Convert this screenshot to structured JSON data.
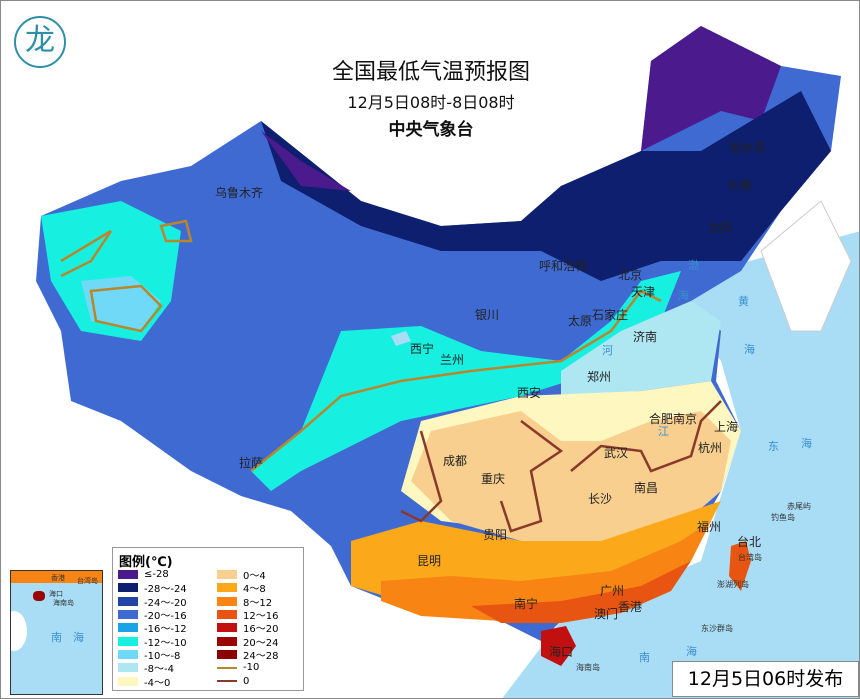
{
  "header": {
    "title": "全国最低气温预报图",
    "period": "12月5日08时-8日08时",
    "issuer": "中央气象台"
  },
  "footer": {
    "published": "12月5日06时发布"
  },
  "legend": {
    "title": "图例(℃)",
    "items": [
      {
        "label": "≤-28",
        "color": "#4b1a8c"
      },
      {
        "label": "-28～-24",
        "color": "#0d1f6e"
      },
      {
        "label": "-24～-20",
        "color": "#1f45a8"
      },
      {
        "label": "-20～-16",
        "color": "#3f6ad2"
      },
      {
        "label": "-16～-12",
        "color": "#1aa3e6"
      },
      {
        "label": "-12～-10",
        "color": "#17f0e0"
      },
      {
        "label": "-10～-8",
        "color": "#6fd9f7"
      },
      {
        "label": "-8～-4",
        "color": "#aee6f2"
      },
      {
        "label": "-4～0",
        "color": "#fff7c0"
      },
      {
        "label": "0～4",
        "color": "#f8cf8f"
      },
      {
        "label": "4～8",
        "color": "#fba91a"
      },
      {
        "label": "8～12",
        "color": "#f88413"
      },
      {
        "label": "12～16",
        "color": "#e85512"
      },
      {
        "label": "16～20",
        "color": "#c21010"
      },
      {
        "label": "20～24",
        "color": "#990505"
      },
      {
        "label": "24～28",
        "color": "#8a0000"
      }
    ],
    "lines": [
      {
        "label": "-10",
        "color": "#b8862b"
      },
      {
        "label": "0",
        "color": "#8a3a2a"
      }
    ]
  },
  "cities": [
    "乌鲁木齐",
    "哈尔滨",
    "长春",
    "沈阳",
    "呼和浩特",
    "北京",
    "天津",
    "银川",
    "太原",
    "石家庄",
    "济南",
    "西宁",
    "兰州",
    "郑州",
    "西安",
    "合肥",
    "南京",
    "上海",
    "杭州",
    "武汉",
    "成都",
    "拉萨",
    "重庆",
    "南昌",
    "长沙",
    "贵阳",
    "福州",
    "台北",
    "昆明",
    "广州",
    "香港",
    "澳门",
    "南宁",
    "海口",
    "海南岛"
  ],
  "islands": [
    "赤尾屿",
    "钓鱼岛",
    "台湾岛",
    "澎湖列岛",
    "东沙群岛"
  ],
  "water": [
    "渤",
    "海",
    "黄",
    "海",
    "东",
    "海",
    "南",
    "海",
    "江",
    "河"
  ],
  "inset": {
    "labels": [
      "香港",
      "台湾岛",
      "海口",
      "海南岛",
      "南",
      "海"
    ]
  },
  "colors": {
    "sea": "#a9dcf5",
    "contour_minus10": "#b8862b",
    "contour_0": "#8a3a2a"
  }
}
